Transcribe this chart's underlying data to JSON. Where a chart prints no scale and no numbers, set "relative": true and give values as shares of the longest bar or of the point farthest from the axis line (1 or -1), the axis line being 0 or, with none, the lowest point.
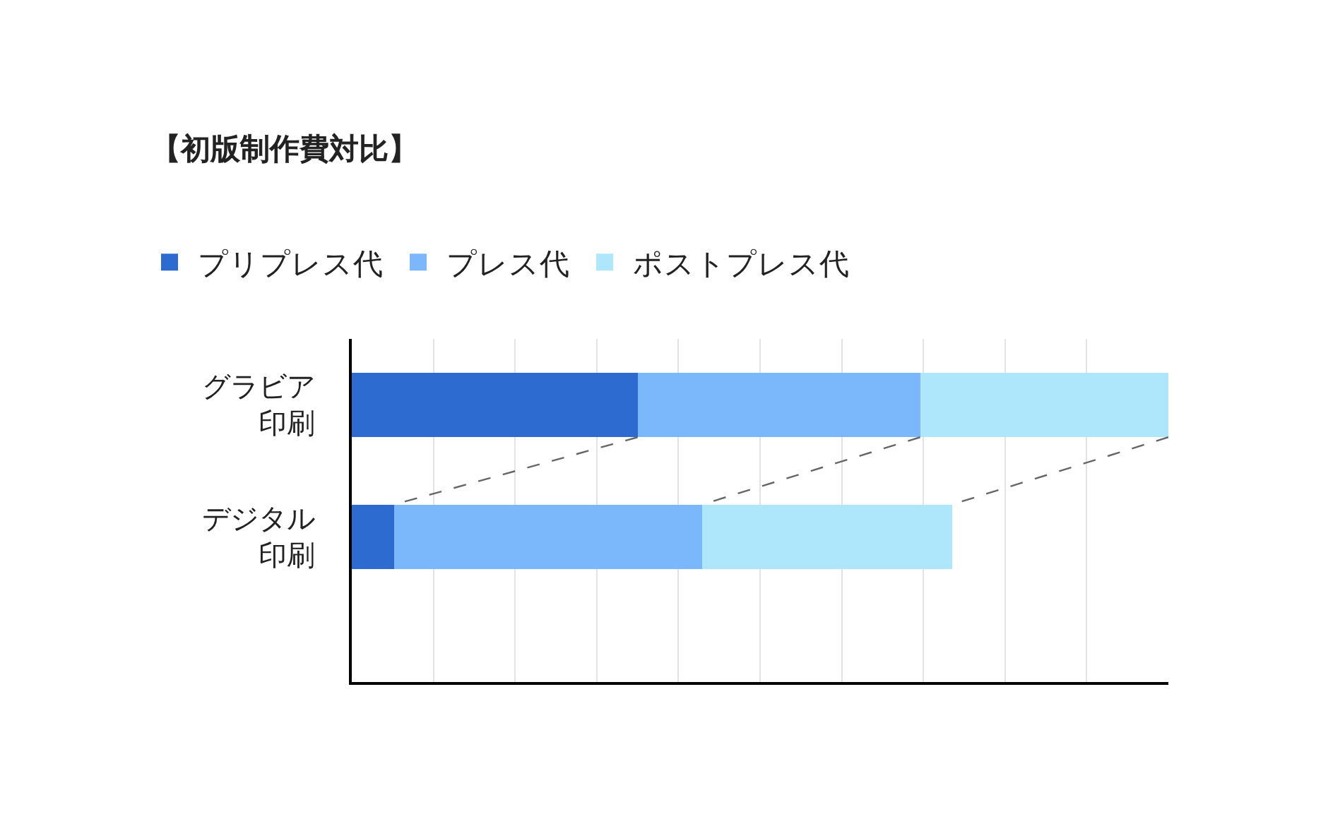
{
  "chart_data": {
    "type": "bar",
    "orientation": "horizontal",
    "stacked": true,
    "relative": true,
    "title": "【初版制作費対比】",
    "categories": [
      "グラビア印刷",
      "デジタル印刷"
    ],
    "series": [
      {
        "name": "プリプレス代",
        "color": "#2e6bd1",
        "values": [
          0.35,
          0.052
        ]
      },
      {
        "name": "プレス代",
        "color": "#7ab8fb",
        "values": [
          0.346,
          0.377
        ]
      },
      {
        "name": "ポストプレス代",
        "color": "#aee6fc",
        "values": [
          0.304,
          0.306
        ]
      }
    ],
    "grid": "x",
    "legend": "top left",
    "tick_labels": "y"
  }
}
